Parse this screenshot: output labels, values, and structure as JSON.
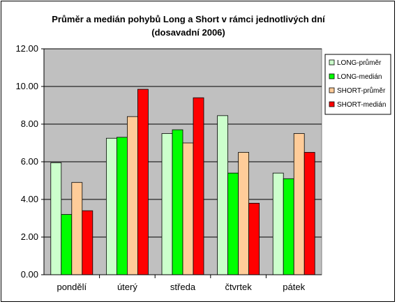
{
  "chart_data": {
    "type": "bar",
    "title": "Průměr a medián pohybů Long a Short v rámci jednotlivých dní",
    "subtitle": "(dosavadní 2006)",
    "xlabel": "",
    "ylabel": "",
    "categories": [
      "pondělí",
      "úterý",
      "středa",
      "čtvrtek",
      "pátek"
    ],
    "ylim": [
      0,
      12
    ],
    "yticks": [
      "0.00",
      "2.00",
      "4.00",
      "6.00",
      "8.00",
      "10.00",
      "12.00"
    ],
    "grid": true,
    "legend": "right",
    "plot_background": "#c0c0c0",
    "series": [
      {
        "name": "LONG-průměr",
        "color": "#ccffcc",
        "values": [
          5.95,
          7.25,
          7.5,
          8.45,
          5.4
        ]
      },
      {
        "name": "LONG-medián",
        "color": "#00ff00",
        "values": [
          3.2,
          7.3,
          7.7,
          5.4,
          5.1
        ]
      },
      {
        "name": "SHORT-průměr",
        "color": "#ffcc99",
        "values": [
          4.9,
          8.4,
          7.0,
          6.5,
          7.5
        ]
      },
      {
        "name": "SHORT-medián",
        "color": "#ff0000",
        "values": [
          3.4,
          9.85,
          9.4,
          3.8,
          6.5
        ]
      }
    ]
  }
}
